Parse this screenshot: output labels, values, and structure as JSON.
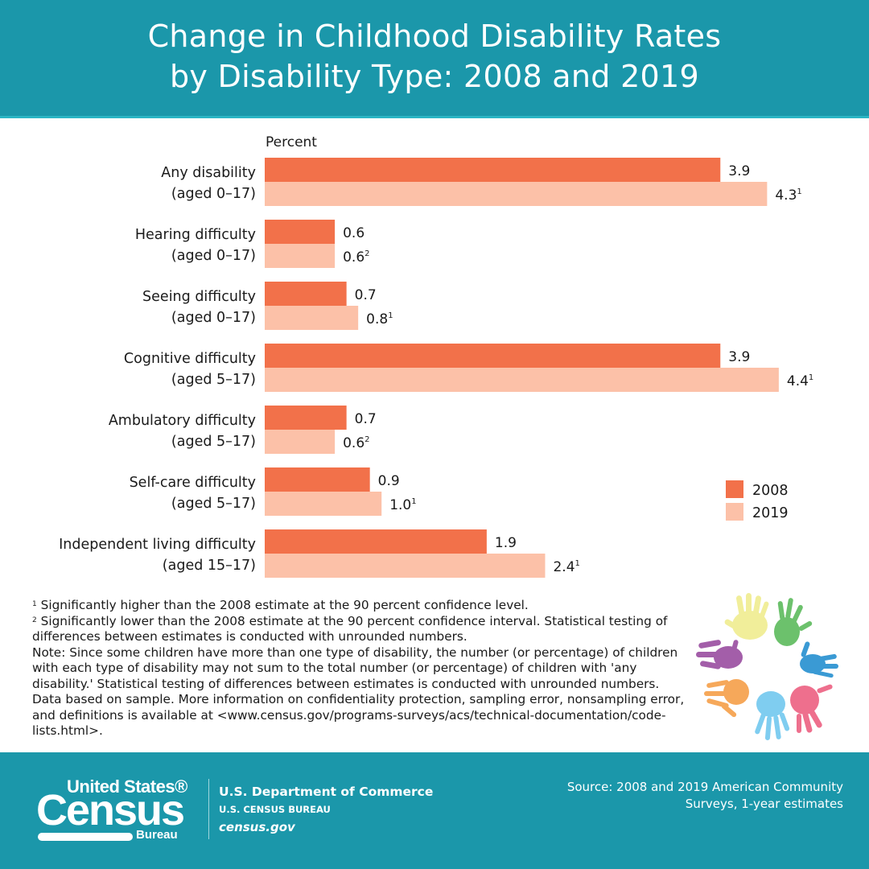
{
  "header": {
    "title_line1": "Change in Childhood Disability Rates",
    "title_line2": "by Disability Type: 2008 and 2019"
  },
  "colors": {
    "header_bg": "#1b97aa",
    "bar_2008": "#f2714a",
    "bar_2019": "#fcc1a8"
  },
  "chart_data": {
    "type": "bar",
    "orientation": "horizontal",
    "title": "Change in Childhood Disability Rates by Disability Type: 2008 and 2019",
    "xlabel": "Percent",
    "ylabel": "",
    "xlim": [
      0,
      4.5
    ],
    "grid": false,
    "legend_position": "right",
    "categories": [
      {
        "label": "Any disability",
        "sublabel": "(aged 0–17)"
      },
      {
        "label": "Hearing difficulty",
        "sublabel": "(aged 0–17)"
      },
      {
        "label": "Seeing difficulty",
        "sublabel": "(aged 0–17)"
      },
      {
        "label": "Cognitive difficulty",
        "sublabel": "(aged 5–17)"
      },
      {
        "label": "Ambulatory difficulty",
        "sublabel": "(aged 5–17)"
      },
      {
        "label": "Self-care difficulty",
        "sublabel": "(aged 5–17)"
      },
      {
        "label": "Independent living difficulty",
        "sublabel": "(aged 15–17)"
      }
    ],
    "series": [
      {
        "name": "2008",
        "color": "#f2714a",
        "values": [
          3.9,
          0.6,
          0.7,
          3.9,
          0.7,
          0.9,
          1.9
        ],
        "labels": [
          "3.9",
          "0.6",
          "0.7",
          "3.9",
          "0.7",
          "0.9",
          "1.9"
        ],
        "footnotes": [
          "",
          "",
          "",
          "",
          "",
          "",
          ""
        ]
      },
      {
        "name": "2019",
        "color": "#fcc1a8",
        "values": [
          4.3,
          0.6,
          0.8,
          4.4,
          0.6,
          1.0,
          2.4
        ],
        "labels": [
          "4.3",
          "0.6",
          "0.8",
          "4.4",
          "0.6",
          "1.0",
          "2.4"
        ],
        "footnotes": [
          "1",
          "2",
          "1",
          "1",
          "2",
          "1",
          "1"
        ]
      }
    ]
  },
  "notes": {
    "fn1_mark": "1",
    "fn1": "Significantly higher than the 2008 estimate at the 90 percent confidence level.",
    "fn2_mark": "2",
    "fn2": "Significantly lower than the 2008 estimate at the 90 percent confidence interval. Statistical testing of differences between estimates is conducted with unrounded numbers.",
    "note": "Note: Since some children have more than one type of disability, the number (or percentage) of children with each type of disability may not sum to the total number (or percentage) of children with 'any disability.' Statistical testing of differences between estimates is conducted with unrounded numbers. Data based on sample. More information on confidentiality protection, sampling error, nonsampling error, and definitions is available at <www.census.gov/programs-surveys/acs/technical-documentation/code-lists.html>."
  },
  "footer": {
    "logo_united_states": "United States®",
    "logo_census": "Census",
    "logo_bureau": "Bureau",
    "department": "U.S. Department of Commerce",
    "bureau": "U.S. CENSUS BUREAU",
    "website": "census.gov",
    "source_line1": "Source: 2008 and 2019 American Community",
    "source_line2": "Surveys, 1-year estimates"
  },
  "decoration": {
    "icon": "colorful-handprints-circle-icon"
  }
}
